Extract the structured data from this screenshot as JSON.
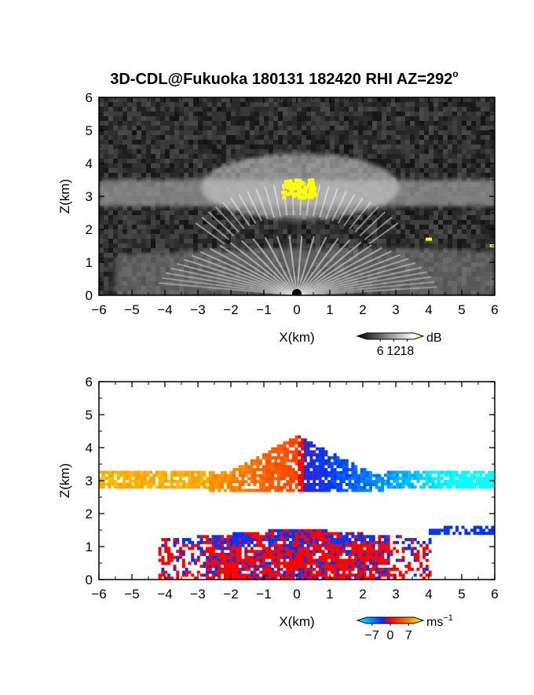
{
  "figure": {
    "title": "3D-CDL@Fukuoka 180131 182420 RHI AZ=292",
    "title_sup": "o"
  },
  "chart_data": [
    {
      "type": "heatmap",
      "name": "reflectivity-panel",
      "xlabel": "X(km)",
      "ylabel": "Z(km)",
      "xlim": [
        -6,
        6
      ],
      "ylim": [
        0,
        6
      ],
      "xticks": [
        -6,
        -5,
        -4,
        -3,
        -2,
        -1,
        0,
        1,
        2,
        3,
        4,
        5,
        6
      ],
      "yticks": [
        0,
        1,
        2,
        3,
        4,
        5,
        6
      ],
      "colorbar": {
        "unit": "dB",
        "ticks": [
          6,
          12,
          18
        ],
        "range": [
          0,
          21
        ],
        "colors": [
          "#000000",
          "#ffffff",
          "#ffff00"
        ]
      },
      "features": [
        {
          "label": "upper echo layer",
          "x": [
            -6,
            6
          ],
          "z": [
            2.7,
            3.5
          ],
          "intensity_db": 12
        },
        {
          "label": "lower echo fan",
          "x": [
            -5.5,
            6
          ],
          "z": [
            0,
            1.5
          ],
          "intensity_db": 12
        },
        {
          "label": "strong core",
          "x": [
            -0.5,
            0.9
          ],
          "z": [
            2.9,
            3.6
          ],
          "intensity_db": 20
        },
        {
          "label": "point echo",
          "x": [
            4,
            4
          ],
          "z": [
            1.7,
            1.7
          ],
          "intensity_db": 20
        },
        {
          "label": "point echo",
          "x": [
            5.95,
            5.95
          ],
          "z": [
            1.5,
            1.5
          ],
          "intensity_db": 20
        }
      ]
    },
    {
      "type": "heatmap",
      "name": "velocity-panel",
      "xlabel": "X(km)",
      "ylabel": "Z(km)",
      "xlim": [
        -6,
        6
      ],
      "ylim": [
        0,
        6
      ],
      "xticks": [
        -6,
        -5,
        -4,
        -3,
        -2,
        -1,
        0,
        1,
        2,
        3,
        4,
        5,
        6
      ],
      "yticks": [
        0,
        1,
        2,
        3,
        4,
        5,
        6
      ],
      "colorbar": {
        "unit": "ms",
        "unit_sup": "−1",
        "ticks": [
          -7,
          0,
          7
        ],
        "range": [
          -9,
          9
        ],
        "colors": [
          "#00ffff",
          "#0033ff",
          "#ff0000",
          "#ffff00"
        ]
      },
      "features": [
        {
          "label": "upper layer left",
          "x": [
            -6,
            -2.8
          ],
          "z": [
            2.9,
            3.3
          ],
          "velocity": 6
        },
        {
          "label": "upper layer mid-left",
          "x": [
            -2.8,
            0
          ],
          "z": [
            2.8,
            4.5
          ],
          "velocity": 3
        },
        {
          "label": "upper layer mid-right",
          "x": [
            0,
            2.5
          ],
          "z": [
            2.8,
            4.5
          ],
          "velocity": -4
        },
        {
          "label": "upper layer right",
          "x": [
            2.5,
            6
          ],
          "z": [
            2.9,
            3.3
          ],
          "velocity": -7
        },
        {
          "label": "lower layer",
          "x": [
            -4.2,
            4
          ],
          "z": [
            0,
            1.7
          ],
          "velocity": 0.5
        },
        {
          "label": "lower right streak",
          "x": [
            4,
            6
          ],
          "z": [
            1.4,
            1.7
          ],
          "velocity": -1
        }
      ]
    }
  ]
}
